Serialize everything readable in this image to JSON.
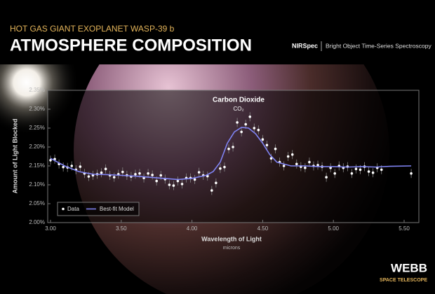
{
  "header": {
    "kicker": "HOT GAS GIANT EXOPLANET WASP-39 b",
    "title": "ATMOSPHERE COMPOSITION",
    "instrument": "NIRSpec",
    "mode": "Bright Object Time-Series Spectroscopy"
  },
  "logo": {
    "name": "WEBB",
    "sub": "SPACE TELESCOPE"
  },
  "chart_data": {
    "type": "scatter",
    "annotation": "Carbon Dioxide",
    "annotation_formula": "CO₂",
    "x_label": "Wavelength of Light",
    "x_unit": "microns",
    "y_label": "Amount of Light Blocked",
    "xlim": [
      3.0,
      5.5
    ],
    "ylim": [
      2.0,
      2.35
    ],
    "xticks": [
      {
        "value": 3,
        "label": "3.00"
      },
      {
        "value": 3.5,
        "label": "3.50"
      },
      {
        "value": 4,
        "label": "4.00"
      },
      {
        "value": 4.5,
        "label": "4.50"
      },
      {
        "value": 5,
        "label": "5.00"
      },
      {
        "value": 5.5,
        "label": "5.50"
      }
    ],
    "yticks": [
      {
        "value": 2.0,
        "label": "2.00%"
      },
      {
        "value": 2.05,
        "label": "2.05%"
      },
      {
        "value": 2.1,
        "label": "2.10%"
      },
      {
        "value": 2.15,
        "label": "2.15%"
      },
      {
        "value": 2.2,
        "label": "2.20%"
      },
      {
        "value": 2.25,
        "label": "2.25%"
      },
      {
        "value": 2.3,
        "label": "2.30%"
      },
      {
        "value": 2.35,
        "label": "2.35%"
      }
    ],
    "legend": "lower left",
    "series": [
      {
        "name": "Data",
        "type": "scatter",
        "color": "#ffffff",
        "x": [
          3.0,
          3.03,
          3.06,
          3.09,
          3.12,
          3.15,
          3.18,
          3.21,
          3.24,
          3.27,
          3.3,
          3.33,
          3.36,
          3.39,
          3.42,
          3.45,
          3.48,
          3.51,
          3.54,
          3.57,
          3.6,
          3.63,
          3.66,
          3.69,
          3.72,
          3.75,
          3.78,
          3.81,
          3.84,
          3.87,
          3.9,
          3.93,
          3.96,
          3.99,
          4.02,
          4.05,
          4.08,
          4.11,
          4.14,
          4.17,
          4.2,
          4.23,
          4.26,
          4.29,
          4.32,
          4.35,
          4.38,
          4.41,
          4.44,
          4.47,
          4.5,
          4.53,
          4.56,
          4.59,
          4.62,
          4.65,
          4.68,
          4.71,
          4.74,
          4.77,
          4.8,
          4.83,
          4.86,
          4.89,
          4.92,
          4.95,
          4.98,
          5.01,
          5.04,
          5.07,
          5.1,
          5.13,
          5.16,
          5.19,
          5.22,
          5.25,
          5.28,
          5.31,
          5.34,
          5.55
        ],
        "values": [
          2.165,
          2.168,
          2.155,
          2.147,
          2.146,
          2.15,
          2.14,
          2.148,
          2.13,
          2.122,
          2.125,
          2.128,
          2.132,
          2.142,
          2.125,
          2.12,
          2.128,
          2.134,
          2.125,
          2.122,
          2.128,
          2.13,
          2.118,
          2.13,
          2.126,
          2.11,
          2.125,
          2.115,
          2.1,
          2.098,
          2.11,
          2.102,
          2.118,
          2.118,
          2.114,
          2.133,
          2.125,
          2.123,
          2.085,
          2.105,
          2.143,
          2.147,
          2.195,
          2.2,
          2.265,
          2.24,
          2.26,
          2.28,
          2.25,
          2.245,
          2.22,
          2.205,
          2.17,
          2.195,
          2.16,
          2.15,
          2.175,
          2.18,
          2.155,
          2.148,
          2.145,
          2.16,
          2.15,
          2.152,
          2.148,
          2.12,
          2.145,
          2.13,
          2.15,
          2.145,
          2.148,
          2.13,
          2.142,
          2.14,
          2.148,
          2.135,
          2.132,
          2.145,
          2.14,
          2.13
        ],
        "errors": [
          0.012,
          0.012,
          0.012,
          0.012,
          0.012,
          0.012,
          0.012,
          0.012,
          0.012,
          0.012,
          0.012,
          0.012,
          0.012,
          0.012,
          0.012,
          0.012,
          0.012,
          0.012,
          0.012,
          0.012,
          0.012,
          0.012,
          0.012,
          0.012,
          0.012,
          0.012,
          0.012,
          0.012,
          0.012,
          0.012,
          0.012,
          0.012,
          0.012,
          0.012,
          0.012,
          0.012,
          0.012,
          0.012,
          0.012,
          0.012,
          0.012,
          0.012,
          0.012,
          0.012,
          0.012,
          0.012,
          0.012,
          0.012,
          0.012,
          0.012,
          0.012,
          0.012,
          0.012,
          0.012,
          0.012,
          0.012,
          0.012,
          0.012,
          0.012,
          0.012,
          0.012,
          0.012,
          0.012,
          0.012,
          0.012,
          0.012,
          0.012,
          0.012,
          0.012,
          0.012,
          0.012,
          0.012,
          0.012,
          0.012,
          0.012,
          0.012,
          0.012,
          0.012,
          0.012,
          0.012
        ]
      },
      {
        "name": "Best-fit Model",
        "type": "line",
        "color": "#7f83f2",
        "x": [
          3.0,
          3.1,
          3.2,
          3.3,
          3.4,
          3.5,
          3.6,
          3.7,
          3.8,
          3.9,
          4.0,
          4.1,
          4.15,
          4.2,
          4.25,
          4.3,
          4.35,
          4.4,
          4.45,
          4.5,
          4.55,
          4.6,
          4.7,
          4.8,
          4.9,
          5.0,
          5.1,
          5.2,
          5.3,
          5.4,
          5.55
        ],
        "values": [
          2.17,
          2.15,
          2.135,
          2.128,
          2.127,
          2.125,
          2.123,
          2.12,
          2.117,
          2.114,
          2.117,
          2.125,
          2.135,
          2.16,
          2.21,
          2.24,
          2.252,
          2.25,
          2.235,
          2.21,
          2.18,
          2.16,
          2.15,
          2.15,
          2.148,
          2.148,
          2.147,
          2.148,
          2.147,
          2.149,
          2.15
        ]
      }
    ]
  }
}
